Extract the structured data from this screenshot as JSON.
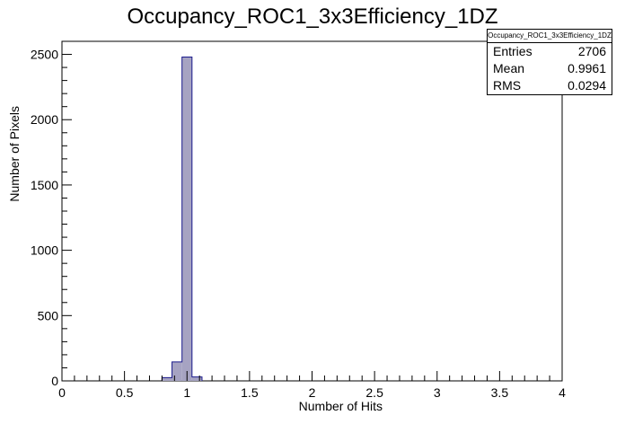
{
  "chart_data": {
    "type": "bar",
    "title": "Occupancy_ROC1_3x3Efficiency_1DZ",
    "xlabel": "Number of Hits",
    "ylabel": "Number of Pixels",
    "xlim": [
      0,
      4
    ],
    "ylim": [
      0,
      2600
    ],
    "x_ticks": [
      "0",
      "0.5",
      "1",
      "1.5",
      "2",
      "2.5",
      "3",
      "3.5",
      "4"
    ],
    "y_ticks": [
      "0",
      "500",
      "1000",
      "1500",
      "2000",
      "2500"
    ],
    "bin_width": 0.08,
    "bins": [
      {
        "x_low": 0.8,
        "x_high": 0.88,
        "value": 25
      },
      {
        "x_low": 0.88,
        "x_high": 0.96,
        "value": 145
      },
      {
        "x_low": 0.96,
        "x_high": 1.04,
        "value": 2480
      },
      {
        "x_low": 1.04,
        "x_high": 1.12,
        "value": 30
      }
    ],
    "grid": false,
    "legend": "none",
    "colors": {
      "fill": "#a6a3c2",
      "line": "#1a1a8c",
      "axis": "#000000"
    },
    "stats_box": {
      "title": "Occupancy_ROC1_3x3Efficiency_1DZ",
      "entries_label": "Entries",
      "entries_value": "2706",
      "mean_label": "Mean",
      "mean_value": "0.9961",
      "rms_label": "RMS",
      "rms_value": "0.0294"
    }
  }
}
